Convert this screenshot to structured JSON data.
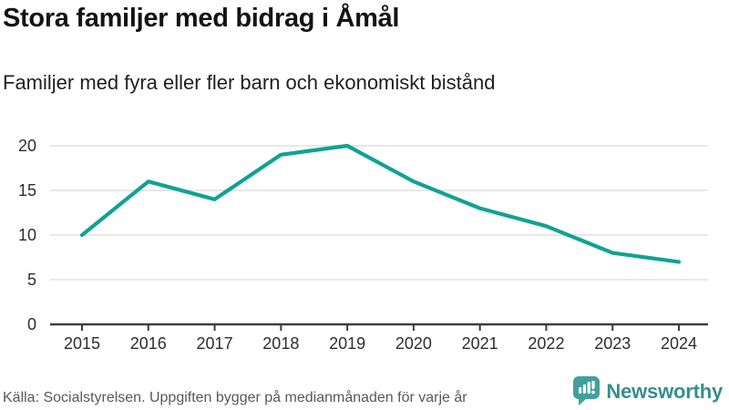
{
  "header": {
    "title": "Stora familjer med bidrag i Åmål",
    "subtitle": "Familjer med fyra eller fler barn och ekonomiskt bistånd"
  },
  "chart_data": {
    "type": "line",
    "categories": [
      "2015",
      "2016",
      "2017",
      "2018",
      "2019",
      "2020",
      "2021",
      "2022",
      "2023",
      "2024"
    ],
    "values": [
      10,
      16,
      14,
      19,
      20,
      16,
      13,
      11,
      8,
      7
    ],
    "title": "Stora familjer med bidrag i Åmål",
    "subtitle": "Familjer med fyra eller fler barn och ekonomiskt bistånd",
    "xlabel": "",
    "ylabel": "",
    "ylim": [
      0,
      20
    ],
    "yticks": [
      0,
      5,
      10,
      15,
      20
    ],
    "grid": true,
    "legend": "none",
    "line_color": "#10a295"
  },
  "footer": {
    "source": "Källa: Socialstyrelsen. Uppgiften bygger på medianmånaden för varje år",
    "brand_name": "Newsworthy"
  },
  "colors": {
    "accent_teal": "#10a295",
    "brand_icon_teal": "#41a09e",
    "brand_text_teal": "#358e8c",
    "gridline": "#e0e0e0",
    "axis": "#3d3d3d",
    "tick_label": "#2e2e2e",
    "muted_text": "#595959"
  }
}
